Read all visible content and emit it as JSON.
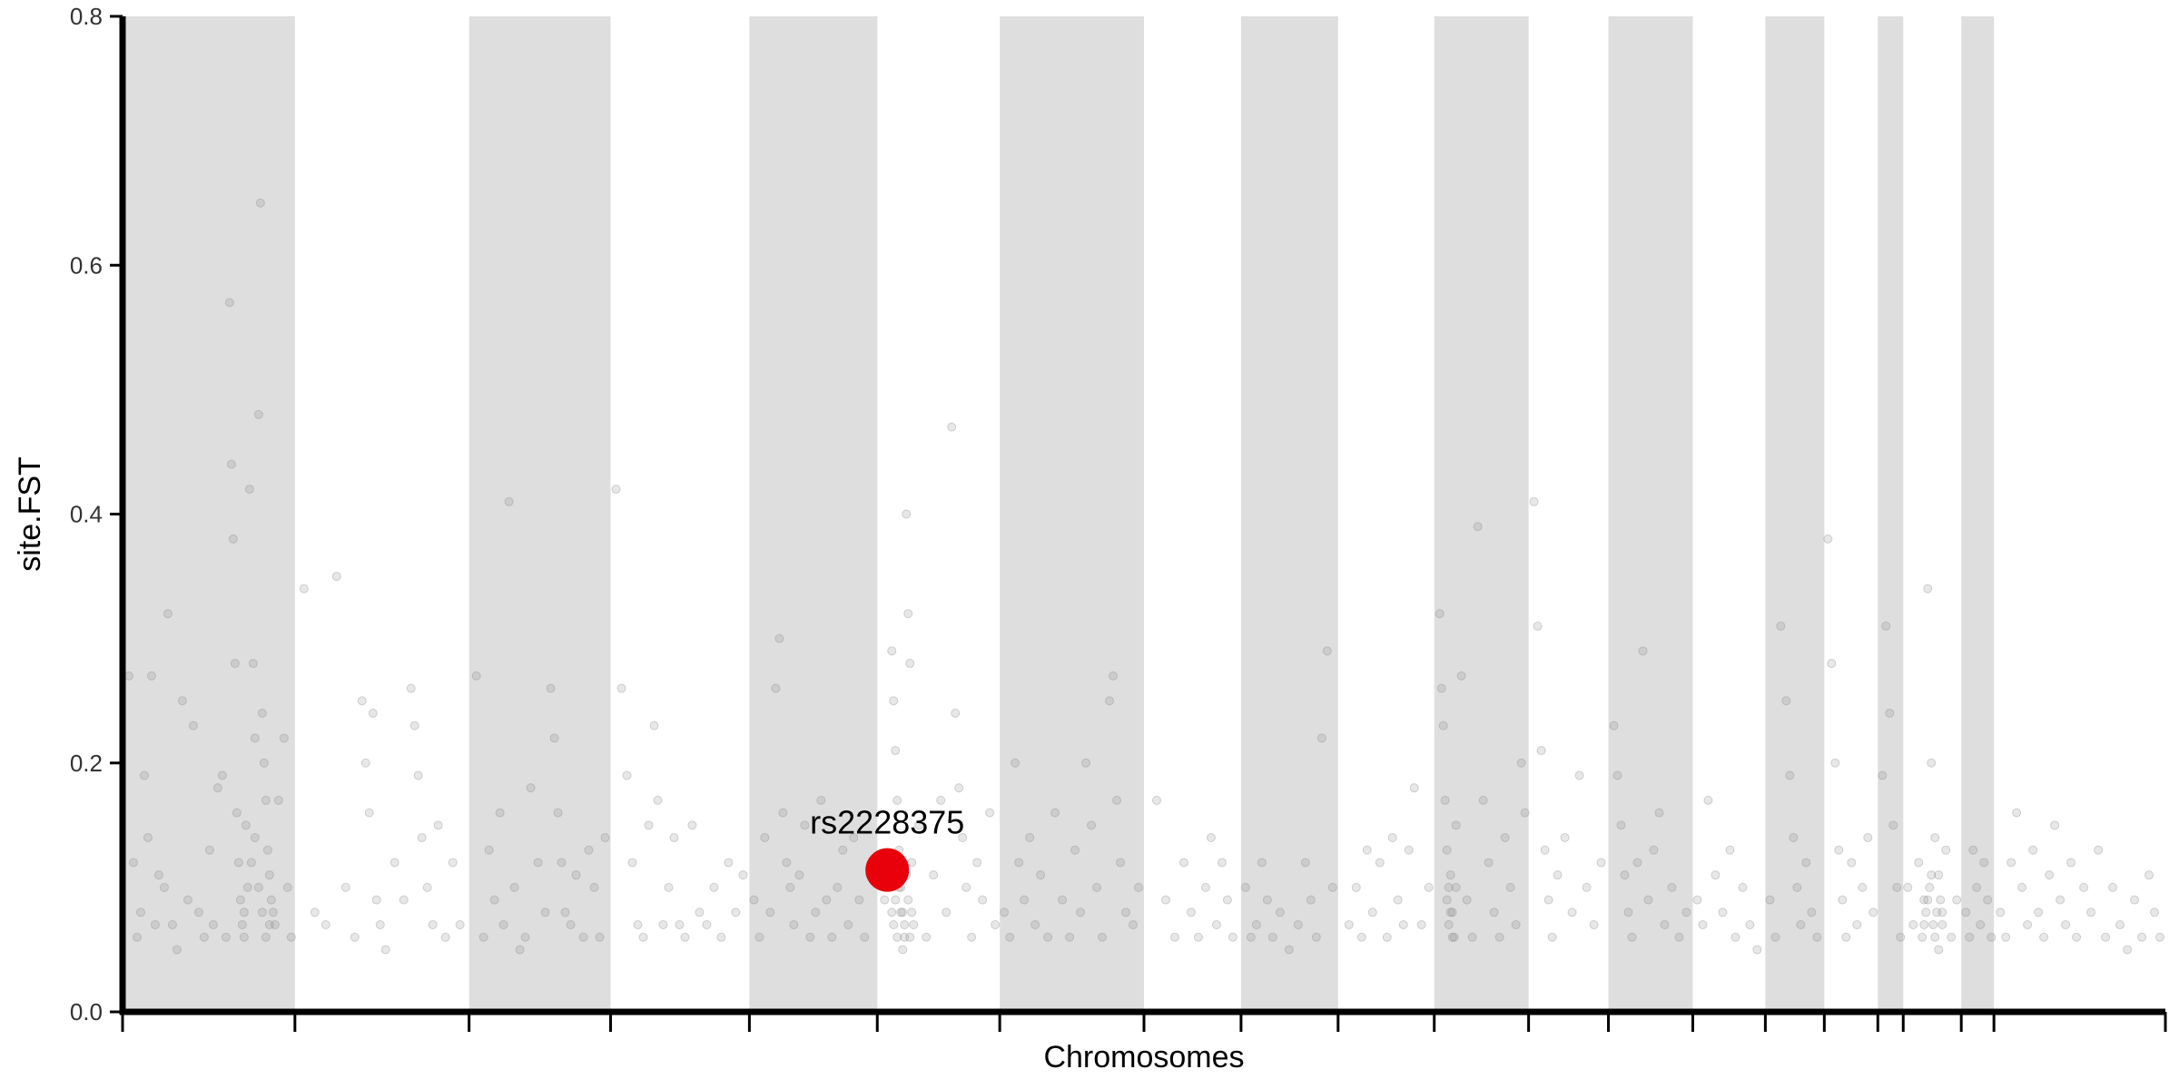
{
  "chart_data": {
    "type": "scatter",
    "title": "",
    "xlabel": "Chromosomes",
    "ylabel": "site.FST",
    "ylim": [
      0,
      0.8
    ],
    "yticks": [
      {
        "value": 0.0,
        "label": "0.0"
      },
      {
        "value": 0.2,
        "label": "0.2"
      },
      {
        "value": 0.4,
        "label": "0.4"
      },
      {
        "value": 0.6,
        "label": "0.6"
      },
      {
        "value": 0.8,
        "label": "0.8"
      }
    ],
    "xlim": [
      0,
      2252
    ],
    "chromosome_bounds": [
      0,
      190,
      382,
      538,
      691,
      832,
      967,
      1126,
      1233,
      1340,
      1446,
      1550,
      1638,
      1731,
      1811,
      1876,
      1935,
      1963,
      2027,
      2063,
      2252
    ],
    "shaded_color": "#dedede",
    "point_color": "#888888",
    "highlight_color": "#e8000b",
    "grid": false,
    "legend": "none",
    "highlight": {
      "label": "rs2228375",
      "x": 843,
      "y": 0.114
    },
    "points": [
      [
        7,
        0.27
      ],
      [
        12,
        0.12
      ],
      [
        16,
        0.06
      ],
      [
        20,
        0.08
      ],
      [
        24,
        0.19
      ],
      [
        28,
        0.14
      ],
      [
        32,
        0.27
      ],
      [
        36,
        0.07
      ],
      [
        40,
        0.11
      ],
      [
        46,
        0.1
      ],
      [
        50,
        0.32
      ],
      [
        55,
        0.07
      ],
      [
        60,
        0.05
      ],
      [
        66,
        0.25
      ],
      [
        72,
        0.09
      ],
      [
        78,
        0.23
      ],
      [
        84,
        0.08
      ],
      [
        90,
        0.06
      ],
      [
        96,
        0.13
      ],
      [
        100,
        0.07
      ],
      [
        105,
        0.18
      ],
      [
        110,
        0.19
      ],
      [
        114,
        0.06
      ],
      [
        118,
        0.57
      ],
      [
        120,
        0.44
      ],
      [
        122,
        0.38
      ],
      [
        124,
        0.28
      ],
      [
        126,
        0.16
      ],
      [
        128,
        0.12
      ],
      [
        130,
        0.09
      ],
      [
        132,
        0.07
      ],
      [
        134,
        0.06
      ],
      [
        136,
        0.15
      ],
      [
        140,
        0.42
      ],
      [
        144,
        0.28
      ],
      [
        146,
        0.22
      ],
      [
        150,
        0.48
      ],
      [
        152,
        0.65
      ],
      [
        154,
        0.24
      ],
      [
        156,
        0.2
      ],
      [
        158,
        0.17
      ],
      [
        160,
        0.13
      ],
      [
        162,
        0.11
      ],
      [
        164,
        0.09
      ],
      [
        166,
        0.08
      ],
      [
        168,
        0.07
      ],
      [
        172,
        0.17
      ],
      [
        178,
        0.22
      ],
      [
        182,
        0.1
      ],
      [
        186,
        0.06
      ],
      [
        200,
        0.34
      ],
      [
        212,
        0.08
      ],
      [
        224,
        0.07
      ],
      [
        236,
        0.35
      ],
      [
        246,
        0.1
      ],
      [
        256,
        0.06
      ],
      [
        264,
        0.25
      ],
      [
        268,
        0.2
      ],
      [
        272,
        0.16
      ],
      [
        276,
        0.24
      ],
      [
        280,
        0.09
      ],
      [
        284,
        0.07
      ],
      [
        290,
        0.05
      ],
      [
        300,
        0.12
      ],
      [
        310,
        0.09
      ],
      [
        318,
        0.26
      ],
      [
        322,
        0.23
      ],
      [
        326,
        0.19
      ],
      [
        330,
        0.14
      ],
      [
        336,
        0.1
      ],
      [
        342,
        0.07
      ],
      [
        348,
        0.15
      ],
      [
        356,
        0.06
      ],
      [
        364,
        0.12
      ],
      [
        372,
        0.07
      ],
      [
        390,
        0.27
      ],
      [
        398,
        0.06
      ],
      [
        404,
        0.13
      ],
      [
        410,
        0.09
      ],
      [
        416,
        0.16
      ],
      [
        420,
        0.07
      ],
      [
        426,
        0.41
      ],
      [
        432,
        0.1
      ],
      [
        438,
        0.05
      ],
      [
        444,
        0.06
      ],
      [
        450,
        0.18
      ],
      [
        458,
        0.12
      ],
      [
        466,
        0.08
      ],
      [
        472,
        0.26
      ],
      [
        476,
        0.22
      ],
      [
        480,
        0.16
      ],
      [
        484,
        0.12
      ],
      [
        488,
        0.08
      ],
      [
        494,
        0.07
      ],
      [
        500,
        0.11
      ],
      [
        508,
        0.06
      ],
      [
        514,
        0.13
      ],
      [
        520,
        0.1
      ],
      [
        526,
        0.06
      ],
      [
        532,
        0.14
      ],
      [
        544,
        0.42
      ],
      [
        550,
        0.26
      ],
      [
        556,
        0.19
      ],
      [
        562,
        0.12
      ],
      [
        568,
        0.07
      ],
      [
        574,
        0.06
      ],
      [
        580,
        0.15
      ],
      [
        586,
        0.23
      ],
      [
        590,
        0.17
      ],
      [
        596,
        0.07
      ],
      [
        602,
        0.1
      ],
      [
        608,
        0.14
      ],
      [
        614,
        0.07
      ],
      [
        620,
        0.06
      ],
      [
        628,
        0.15
      ],
      [
        636,
        0.08
      ],
      [
        644,
        0.07
      ],
      [
        652,
        0.1
      ],
      [
        660,
        0.06
      ],
      [
        668,
        0.12
      ],
      [
        676,
        0.08
      ],
      [
        684,
        0.11
      ],
      [
        696,
        0.09
      ],
      [
        702,
        0.06
      ],
      [
        708,
        0.14
      ],
      [
        714,
        0.08
      ],
      [
        720,
        0.26
      ],
      [
        724,
        0.3
      ],
      [
        728,
        0.16
      ],
      [
        732,
        0.12
      ],
      [
        736,
        0.1
      ],
      [
        740,
        0.07
      ],
      [
        746,
        0.11
      ],
      [
        752,
        0.15
      ],
      [
        758,
        0.06
      ],
      [
        764,
        0.08
      ],
      [
        770,
        0.17
      ],
      [
        776,
        0.09
      ],
      [
        782,
        0.06
      ],
      [
        788,
        0.1
      ],
      [
        794,
        0.13
      ],
      [
        800,
        0.07
      ],
      [
        806,
        0.14
      ],
      [
        812,
        0.09
      ],
      [
        818,
        0.06
      ],
      [
        824,
        0.11
      ],
      [
        840,
        0.09
      ],
      [
        848,
        0.29
      ],
      [
        850,
        0.25
      ],
      [
        852,
        0.21
      ],
      [
        854,
        0.17
      ],
      [
        856,
        0.13
      ],
      [
        858,
        0.1
      ],
      [
        860,
        0.08
      ],
      [
        862,
        0.06
      ],
      [
        864,
        0.4
      ],
      [
        866,
        0.32
      ],
      [
        868,
        0.28
      ],
      [
        870,
        0.12
      ],
      [
        872,
        0.07
      ],
      [
        878,
        0.15
      ],
      [
        886,
        0.06
      ],
      [
        894,
        0.11
      ],
      [
        902,
        0.17
      ],
      [
        908,
        0.08
      ],
      [
        914,
        0.47
      ],
      [
        918,
        0.24
      ],
      [
        922,
        0.18
      ],
      [
        926,
        0.14
      ],
      [
        930,
        0.1
      ],
      [
        936,
        0.06
      ],
      [
        942,
        0.12
      ],
      [
        948,
        0.09
      ],
      [
        956,
        0.16
      ],
      [
        962,
        0.07
      ],
      [
        972,
        0.08
      ],
      [
        978,
        0.06
      ],
      [
        984,
        0.2
      ],
      [
        988,
        0.12
      ],
      [
        994,
        0.09
      ],
      [
        1000,
        0.14
      ],
      [
        1006,
        0.07
      ],
      [
        1012,
        0.11
      ],
      [
        1020,
        0.06
      ],
      [
        1028,
        0.16
      ],
      [
        1036,
        0.09
      ],
      [
        1044,
        0.06
      ],
      [
        1050,
        0.13
      ],
      [
        1056,
        0.08
      ],
      [
        1062,
        0.2
      ],
      [
        1068,
        0.15
      ],
      [
        1074,
        0.1
      ],
      [
        1080,
        0.06
      ],
      [
        1088,
        0.25
      ],
      [
        1092,
        0.27
      ],
      [
        1096,
        0.17
      ],
      [
        1100,
        0.12
      ],
      [
        1106,
        0.08
      ],
      [
        1114,
        0.07
      ],
      [
        1120,
        0.1
      ],
      [
        1140,
        0.17
      ],
      [
        1150,
        0.09
      ],
      [
        1160,
        0.06
      ],
      [
        1170,
        0.12
      ],
      [
        1178,
        0.08
      ],
      [
        1186,
        0.06
      ],
      [
        1194,
        0.1
      ],
      [
        1200,
        0.14
      ],
      [
        1206,
        0.07
      ],
      [
        1212,
        0.12
      ],
      [
        1218,
        0.09
      ],
      [
        1224,
        0.06
      ],
      [
        1238,
        0.1
      ],
      [
        1244,
        0.06
      ],
      [
        1250,
        0.07
      ],
      [
        1256,
        0.12
      ],
      [
        1262,
        0.09
      ],
      [
        1268,
        0.06
      ],
      [
        1276,
        0.08
      ],
      [
        1286,
        0.05
      ],
      [
        1296,
        0.07
      ],
      [
        1304,
        0.12
      ],
      [
        1310,
        0.09
      ],
      [
        1316,
        0.06
      ],
      [
        1322,
        0.22
      ],
      [
        1328,
        0.29
      ],
      [
        1334,
        0.1
      ],
      [
        1352,
        0.07
      ],
      [
        1360,
        0.1
      ],
      [
        1366,
        0.06
      ],
      [
        1372,
        0.13
      ],
      [
        1378,
        0.08
      ],
      [
        1386,
        0.12
      ],
      [
        1394,
        0.06
      ],
      [
        1400,
        0.14
      ],
      [
        1406,
        0.09
      ],
      [
        1412,
        0.07
      ],
      [
        1418,
        0.13
      ],
      [
        1424,
        0.18
      ],
      [
        1432,
        0.07
      ],
      [
        1440,
        0.1
      ],
      [
        1452,
        0.32
      ],
      [
        1454,
        0.26
      ],
      [
        1456,
        0.23
      ],
      [
        1458,
        0.17
      ],
      [
        1460,
        0.13
      ],
      [
        1462,
        0.1
      ],
      [
        1464,
        0.08
      ],
      [
        1466,
        0.06
      ],
      [
        1470,
        0.15
      ],
      [
        1476,
        0.27
      ],
      [
        1482,
        0.09
      ],
      [
        1488,
        0.06
      ],
      [
        1494,
        0.39
      ],
      [
        1500,
        0.17
      ],
      [
        1506,
        0.12
      ],
      [
        1512,
        0.08
      ],
      [
        1518,
        0.06
      ],
      [
        1524,
        0.14
      ],
      [
        1530,
        0.1
      ],
      [
        1536,
        0.07
      ],
      [
        1542,
        0.2
      ],
      [
        1546,
        0.16
      ],
      [
        1556,
        0.41
      ],
      [
        1560,
        0.31
      ],
      [
        1564,
        0.21
      ],
      [
        1568,
        0.13
      ],
      [
        1572,
        0.09
      ],
      [
        1576,
        0.06
      ],
      [
        1582,
        0.11
      ],
      [
        1590,
        0.14
      ],
      [
        1598,
        0.08
      ],
      [
        1606,
        0.19
      ],
      [
        1614,
        0.1
      ],
      [
        1622,
        0.07
      ],
      [
        1630,
        0.12
      ],
      [
        1644,
        0.23
      ],
      [
        1648,
        0.19
      ],
      [
        1652,
        0.15
      ],
      [
        1656,
        0.11
      ],
      [
        1660,
        0.08
      ],
      [
        1664,
        0.06
      ],
      [
        1670,
        0.12
      ],
      [
        1676,
        0.29
      ],
      [
        1682,
        0.09
      ],
      [
        1688,
        0.13
      ],
      [
        1694,
        0.16
      ],
      [
        1700,
        0.07
      ],
      [
        1708,
        0.1
      ],
      [
        1716,
        0.06
      ],
      [
        1724,
        0.08
      ],
      [
        1736,
        0.09
      ],
      [
        1742,
        0.07
      ],
      [
        1748,
        0.17
      ],
      [
        1756,
        0.11
      ],
      [
        1764,
        0.08
      ],
      [
        1772,
        0.13
      ],
      [
        1778,
        0.06
      ],
      [
        1786,
        0.1
      ],
      [
        1794,
        0.07
      ],
      [
        1802,
        0.05
      ],
      [
        1816,
        0.09
      ],
      [
        1822,
        0.06
      ],
      [
        1828,
        0.31
      ],
      [
        1834,
        0.25
      ],
      [
        1838,
        0.19
      ],
      [
        1842,
        0.14
      ],
      [
        1846,
        0.1
      ],
      [
        1850,
        0.07
      ],
      [
        1856,
        0.12
      ],
      [
        1862,
        0.08
      ],
      [
        1868,
        0.06
      ],
      [
        1880,
        0.38
      ],
      [
        1884,
        0.28
      ],
      [
        1888,
        0.2
      ],
      [
        1892,
        0.13
      ],
      [
        1896,
        0.09
      ],
      [
        1900,
        0.06
      ],
      [
        1906,
        0.12
      ],
      [
        1912,
        0.07
      ],
      [
        1918,
        0.1
      ],
      [
        1924,
        0.14
      ],
      [
        1930,
        0.08
      ],
      [
        1940,
        0.19
      ],
      [
        1944,
        0.31
      ],
      [
        1948,
        0.24
      ],
      [
        1952,
        0.15
      ],
      [
        1956,
        0.1
      ],
      [
        1960,
        0.06
      ],
      [
        1968,
        0.1
      ],
      [
        1974,
        0.07
      ],
      [
        1980,
        0.12
      ],
      [
        1986,
        0.09
      ],
      [
        1990,
        0.34
      ],
      [
        1994,
        0.2
      ],
      [
        1998,
        0.14
      ],
      [
        2002,
        0.11
      ],
      [
        2006,
        0.08
      ],
      [
        2010,
        0.13
      ],
      [
        2016,
        0.06
      ],
      [
        2022,
        0.09
      ],
      [
        2032,
        0.08
      ],
      [
        2036,
        0.06
      ],
      [
        2040,
        0.13
      ],
      [
        2044,
        0.1
      ],
      [
        2048,
        0.07
      ],
      [
        2052,
        0.12
      ],
      [
        2056,
        0.09
      ],
      [
        2060,
        0.06
      ],
      [
        2070,
        0.08
      ],
      [
        2076,
        0.06
      ],
      [
        2082,
        0.12
      ],
      [
        2088,
        0.16
      ],
      [
        2094,
        0.1
      ],
      [
        2100,
        0.07
      ],
      [
        2106,
        0.13
      ],
      [
        2112,
        0.08
      ],
      [
        2118,
        0.06
      ],
      [
        2124,
        0.11
      ],
      [
        2130,
        0.15
      ],
      [
        2136,
        0.09
      ],
      [
        2142,
        0.07
      ],
      [
        2148,
        0.12
      ],
      [
        2154,
        0.06
      ],
      [
        2162,
        0.1
      ],
      [
        2170,
        0.08
      ],
      [
        2178,
        0.13
      ],
      [
        2186,
        0.06
      ],
      [
        2194,
        0.1
      ],
      [
        2202,
        0.07
      ],
      [
        2210,
        0.05
      ],
      [
        2218,
        0.09
      ],
      [
        2226,
        0.06
      ],
      [
        2234,
        0.11
      ],
      [
        2240,
        0.08
      ],
      [
        2246,
        0.06
      ],
      [
        134,
        0.08
      ],
      [
        138,
        0.1
      ],
      [
        142,
        0.12
      ],
      [
        146,
        0.14
      ],
      [
        150,
        0.1
      ],
      [
        154,
        0.08
      ],
      [
        158,
        0.06
      ],
      [
        162,
        0.07
      ],
      [
        848,
        0.08
      ],
      [
        850,
        0.07
      ],
      [
        852,
        0.09
      ],
      [
        854,
        0.06
      ],
      [
        856,
        0.1
      ],
      [
        858,
        0.08
      ],
      [
        860,
        0.05
      ],
      [
        862,
        0.07
      ],
      [
        864,
        0.11
      ],
      [
        866,
        0.09
      ],
      [
        868,
        0.06
      ],
      [
        870,
        0.08
      ],
      [
        1460,
        0.09
      ],
      [
        1462,
        0.07
      ],
      [
        1464,
        0.11
      ],
      [
        1466,
        0.08
      ],
      [
        1468,
        0.06
      ],
      [
        1470,
        0.1
      ],
      [
        1984,
        0.06
      ],
      [
        1986,
        0.07
      ],
      [
        1988,
        0.08
      ],
      [
        1990,
        0.09
      ],
      [
        1992,
        0.1
      ],
      [
        1994,
        0.11
      ],
      [
        1996,
        0.07
      ],
      [
        1998,
        0.06
      ],
      [
        2000,
        0.08
      ],
      [
        2002,
        0.05
      ],
      [
        2004,
        0.09
      ],
      [
        2006,
        0.07
      ]
    ]
  }
}
